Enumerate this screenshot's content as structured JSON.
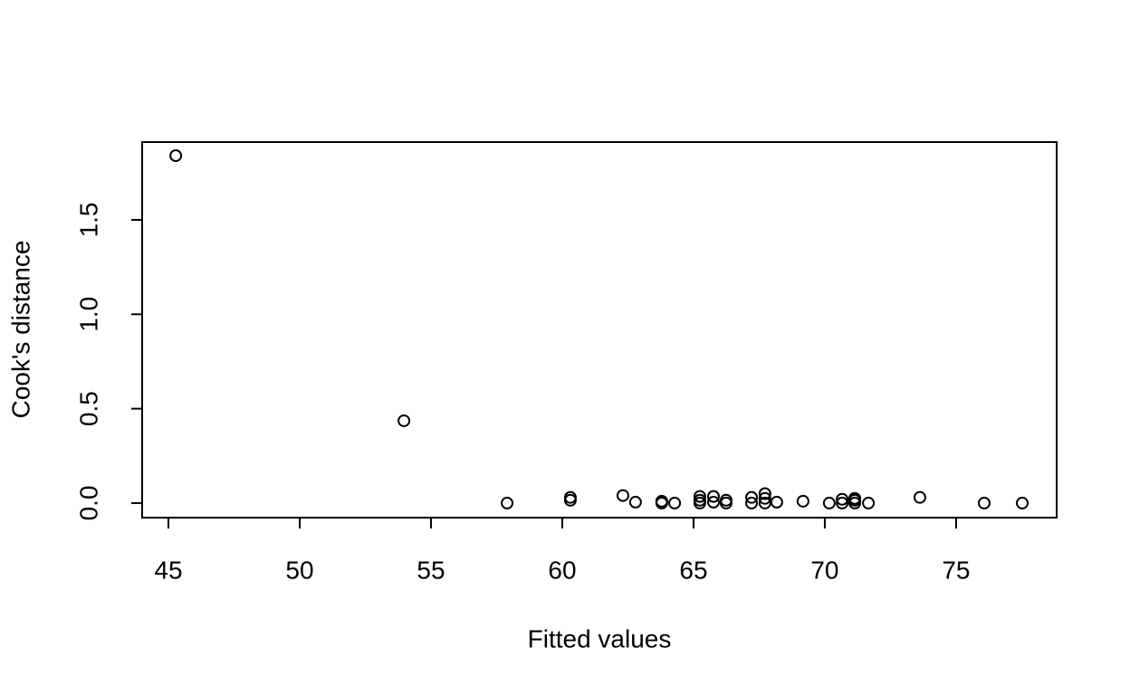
{
  "chart_data": {
    "type": "scatter",
    "x_label": "Fitted values",
    "y_label": "Cook's distance",
    "x": [
      45.28,
      53.97,
      57.9,
      60.31,
      60.31,
      62.31,
      62.79,
      63.79,
      63.79,
      64.28,
      65.24,
      65.24,
      65.24,
      65.76,
      65.76,
      66.24,
      66.24,
      67.21,
      67.21,
      67.72,
      67.72,
      67.72,
      68.17,
      69.17,
      70.17,
      70.66,
      70.66,
      71.14,
      71.14,
      71.14,
      71.66,
      73.62,
      76.07,
      77.52
    ],
    "values": [
      1.84,
      0.436,
      0,
      0.03,
      0.015,
      0.04,
      0.005,
      0.01,
      0,
      0,
      0.035,
      0.015,
      0,
      0.035,
      0.005,
      0.015,
      0,
      0.03,
      0,
      0.05,
      0.025,
      0,
      0.005,
      0.01,
      0,
      0.02,
      0,
      0.025,
      0.015,
      0,
      0,
      0.03,
      0,
      0
    ],
    "color": "#000000",
    "xlim": [
      44.0,
      78.83
    ],
    "ylim": [
      -0.077,
      1.912
    ],
    "xticks": [
      45,
      50,
      55,
      60,
      65,
      70,
      75
    ],
    "yticks": [
      {
        "value": 0,
        "label": "0.0"
      },
      {
        "value": 0.5,
        "label": "0.5"
      },
      {
        "value": 1,
        "label": "1.0"
      },
      {
        "value": 1.5,
        "label": "1.5"
      }
    ],
    "grid": false
  }
}
